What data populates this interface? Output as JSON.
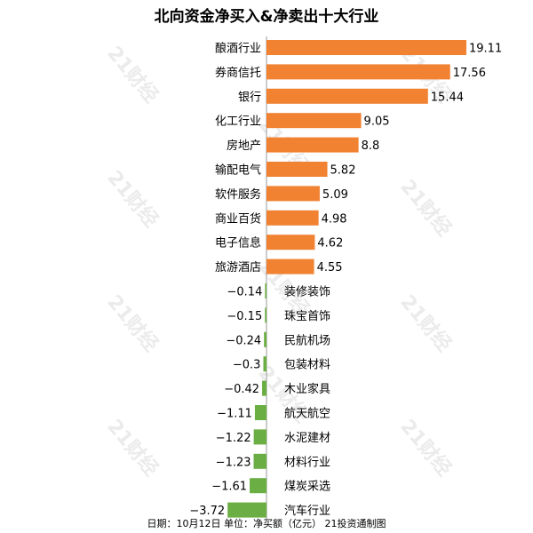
{
  "header": {
    "title": "北向资金净买入&净卖出十大行业"
  },
  "footer": {
    "note": "日期：10月12日 单位：净买额（亿元） 21投资通制图"
  },
  "watermark": {
    "text": "21财经"
  },
  "colors": {
    "positive": "#F08232",
    "negative": "#6BAE44",
    "axis": "#999999",
    "text": "#000000"
  },
  "chart_data": {
    "type": "bar",
    "orientation": "horizontal",
    "title": "北向资金净买入&净卖出十大行业",
    "xlabel": "",
    "ylabel": "",
    "unit": "亿元",
    "xlim": [
      -3.72,
      19.11
    ],
    "grid": false,
    "categories": [
      "酿酒行业",
      "券商信托",
      "银行",
      "化工行业",
      "房地产",
      "输配电气",
      "软件服务",
      "商业百货",
      "电子信息",
      "旅游酒店",
      "装修装饰",
      "珠宝首饰",
      "民航机场",
      "包装材料",
      "木业家具",
      "航天航空",
      "水泥建材",
      "材料行业",
      "煤炭采选",
      "汽车行业"
    ],
    "values": [
      19.11,
      17.56,
      15.44,
      9.05,
      8.8,
      5.82,
      5.09,
      4.98,
      4.62,
      4.55,
      -0.14,
      -0.15,
      -0.24,
      -0.3,
      -0.42,
      -1.11,
      -1.22,
      -1.23,
      -1.61,
      -3.72
    ],
    "value_labels": [
      "19.11",
      "17.56",
      "15.44",
      "9.05",
      "8.8",
      "5.82",
      "5.09",
      "4.98",
      "4.62",
      "4.55",
      "−0.14",
      "−0.15",
      "−0.24",
      "−0.3",
      "−0.42",
      "−1.11",
      "−1.22",
      "−1.23",
      "−1.61",
      "−3.72"
    ]
  }
}
